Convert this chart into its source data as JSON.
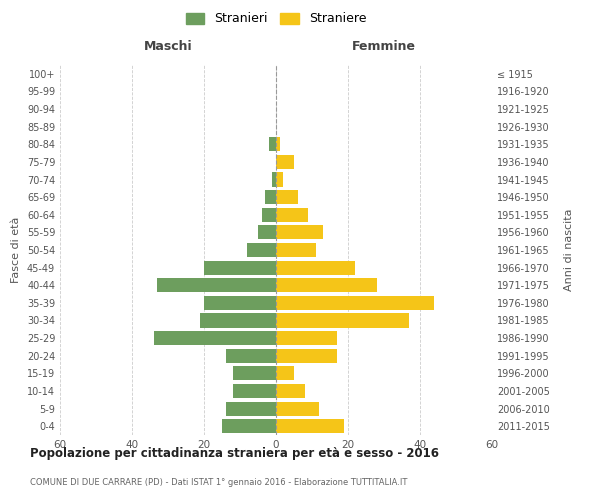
{
  "age_groups_bottom_to_top": [
    "0-4",
    "5-9",
    "10-14",
    "15-19",
    "20-24",
    "25-29",
    "30-34",
    "35-39",
    "40-44",
    "45-49",
    "50-54",
    "55-59",
    "60-64",
    "65-69",
    "70-74",
    "75-79",
    "80-84",
    "85-89",
    "90-94",
    "95-99",
    "100+"
  ],
  "birth_years_bottom_to_top": [
    "2011-2015",
    "2006-2010",
    "2001-2005",
    "1996-2000",
    "1991-1995",
    "1986-1990",
    "1981-1985",
    "1976-1980",
    "1971-1975",
    "1966-1970",
    "1961-1965",
    "1956-1960",
    "1951-1955",
    "1946-1950",
    "1941-1945",
    "1936-1940",
    "1931-1935",
    "1926-1930",
    "1921-1925",
    "1916-1920",
    "≤ 1915"
  ],
  "males_bottom_to_top": [
    15,
    14,
    12,
    12,
    14,
    34,
    21,
    20,
    33,
    20,
    8,
    5,
    4,
    3,
    1,
    0,
    2,
    0,
    0,
    0,
    0
  ],
  "females_bottom_to_top": [
    19,
    12,
    8,
    5,
    17,
    17,
    37,
    44,
    28,
    22,
    11,
    13,
    9,
    6,
    2,
    5,
    1,
    0,
    0,
    0,
    0
  ],
  "male_color": "#6d9e5e",
  "female_color": "#f5c518",
  "male_label": "Stranieri",
  "female_label": "Straniere",
  "xlabel_left": "Maschi",
  "xlabel_right": "Femmine",
  "ylabel_left": "Fasce di età",
  "ylabel_right": "Anni di nascita",
  "xlim": 60,
  "title": "Popolazione per cittadinanza straniera per età e sesso - 2016",
  "subtitle": "COMUNE DI DUE CARRARE (PD) - Dati ISTAT 1° gennaio 2016 - Elaborazione TUTTITALIA.IT",
  "background_color": "#ffffff",
  "grid_color": "#cccccc",
  "bar_height": 0.8
}
